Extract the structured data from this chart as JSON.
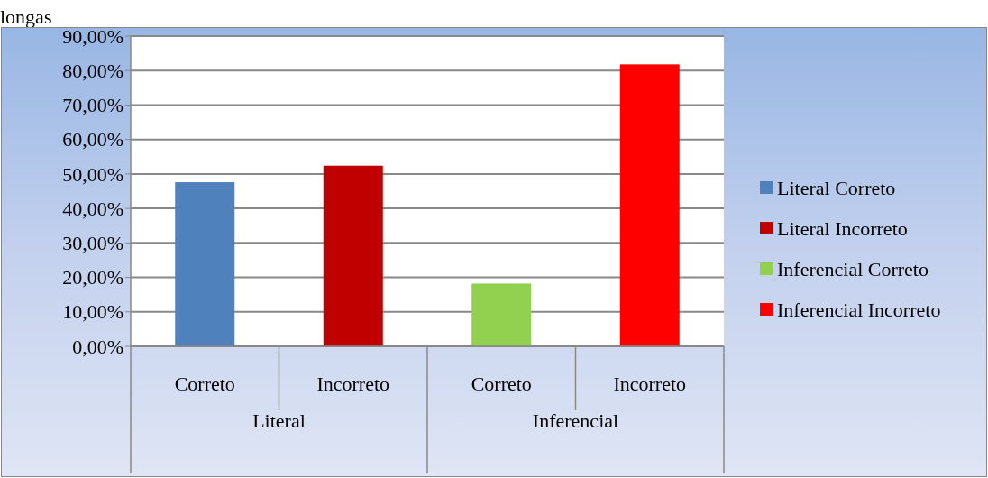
{
  "chart_data": {
    "type": "bar",
    "categories": [
      "Correto",
      "Incorreto",
      "Correto",
      "Incorreto"
    ],
    "series": [
      {
        "name": "Literal Correto",
        "color": "#4f81bd",
        "values": [
          47.6,
          null,
          null,
          null
        ]
      },
      {
        "name": "Literal Incorreto",
        "color": "#c00000",
        "values": [
          null,
          52.4,
          null,
          null
        ]
      },
      {
        "name": "Inferencial Correto",
        "color": "#92d050",
        "values": [
          null,
          null,
          18.2,
          null
        ]
      },
      {
        "name": "Inferencial Incorreto",
        "color": "#ff0000",
        "values": [
          null,
          null,
          null,
          81.8
        ]
      }
    ],
    "ylim": [
      0,
      90
    ],
    "yticks": [
      {
        "value": 0,
        "label": "0,00%"
      },
      {
        "value": 10,
        "label": "10,00%"
      },
      {
        "value": 20,
        "label": "20,00%"
      },
      {
        "value": 30,
        "label": "30,00%"
      },
      {
        "value": 40,
        "label": "40,00%"
      },
      {
        "value": 50,
        "label": "50,00%"
      },
      {
        "value": 60,
        "label": "60,00%"
      },
      {
        "value": 70,
        "label": "70,00%"
      },
      {
        "value": 80,
        "label": "80,00%"
      },
      {
        "value": 90,
        "label": "90,00%"
      }
    ],
    "grid": "y",
    "legend": "right",
    "annotations": [
      "longas",
      "Literal",
      "Inferencial"
    ]
  }
}
